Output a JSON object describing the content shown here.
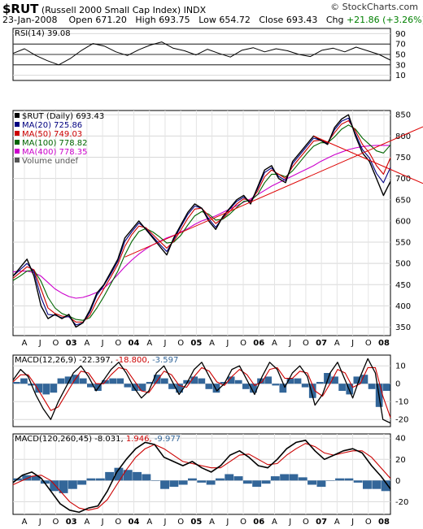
{
  "header": {
    "symbol": "$RUT",
    "name": "(Russell 2000 Small Cap Index)",
    "exchange": "INDX",
    "date": "23-Jan-2008",
    "open_label": "Open",
    "open": "671.20",
    "high_label": "High",
    "high": "693.75",
    "low_label": "Low",
    "low": "654.72",
    "close_label": "Close",
    "close": "693.43",
    "chg_label": "Chg",
    "chg": "+21.86 (+3.26%)",
    "chg_color": "#008000"
  },
  "brand": "© StockCharts.com",
  "chart_data": [
    {
      "type": "line",
      "panel": "rsi",
      "legend": "RSI(14) 39.08",
      "y_ticks": [
        "90",
        "70",
        "50",
        "30",
        "10"
      ],
      "ylim": [
        0,
        100
      ],
      "reference_lines": [
        70,
        50,
        30
      ],
      "series": [
        {
          "name": "RSI(14)",
          "color": "#000000",
          "values": [
            52,
            61,
            48,
            38,
            30,
            42,
            58,
            71,
            66,
            55,
            48,
            59,
            68,
            74,
            62,
            57,
            49,
            60,
            52,
            45,
            58,
            63,
            55,
            61,
            57,
            50,
            46,
            58,
            62,
            55,
            64,
            57,
            50,
            39
          ]
        }
      ]
    },
    {
      "type": "line",
      "panel": "price",
      "y_ticks": [
        "850",
        "800",
        "750",
        "700",
        "650",
        "600",
        "550",
        "500",
        "450",
        "400",
        "350"
      ],
      "ylim": [
        330,
        860
      ],
      "x_ticks": [
        "A",
        "J",
        "O",
        "03",
        "A",
        "J",
        "O",
        "04",
        "A",
        "J",
        "O",
        "05",
        "A",
        "J",
        "O",
        "06",
        "A",
        "J",
        "O",
        "07",
        "A",
        "J",
        "O",
        "08"
      ],
      "legend": [
        {
          "label": "$RUT (Daily) 693.43",
          "color": "#000000"
        },
        {
          "label": "MA(20) 725.86",
          "color": "#000080"
        },
        {
          "label": "MA(50) 749.03",
          "color": "#cc0000"
        },
        {
          "label": "MA(100) 778.82",
          "color": "#006600"
        },
        {
          "label": "MA(400) 778.35",
          "color": "#cc00cc"
        },
        {
          "label": "Volume undef",
          "color": "#555555"
        }
      ],
      "series": [
        {
          "name": "$RUT (Daily)",
          "color": "#000000",
          "values": [
            470,
            490,
            510,
            470,
            400,
            370,
            380,
            370,
            380,
            350,
            360,
            390,
            430,
            450,
            480,
            510,
            560,
            580,
            600,
            580,
            560,
            540,
            520,
            560,
            590,
            620,
            640,
            630,
            600,
            580,
            610,
            630,
            650,
            660,
            640,
            680,
            720,
            730,
            700,
            690,
            740,
            760,
            780,
            800,
            790,
            780,
            820,
            840,
            850,
            800,
            760,
            740,
            700,
            660,
            693
          ]
        },
        {
          "name": "MA(20)",
          "color": "#000080",
          "values": [
            470,
            485,
            500,
            480,
            420,
            380,
            378,
            372,
            375,
            355,
            360,
            385,
            425,
            448,
            475,
            505,
            552,
            575,
            595,
            582,
            563,
            545,
            528,
            556,
            586,
            615,
            635,
            630,
            605,
            585,
            608,
            628,
            646,
            656,
            645,
            676,
            714,
            725,
            705,
            695,
            735,
            755,
            775,
            795,
            790,
            782,
            815,
            835,
            842,
            805,
            768,
            748,
            712,
            690,
            726
          ]
        },
        {
          "name": "MA(50)",
          "color": "#cc0000",
          "values": [
            465,
            478,
            492,
            485,
            440,
            395,
            382,
            376,
            374,
            362,
            362,
            378,
            412,
            440,
            468,
            498,
            540,
            568,
            588,
            584,
            568,
            552,
            536,
            552,
            578,
            606,
            628,
            630,
            612,
            594,
            606,
            622,
            640,
            652,
            648,
            670,
            704,
            720,
            710,
            700,
            728,
            748,
            768,
            788,
            790,
            785,
            808,
            828,
            836,
            812,
            780,
            760,
            730,
            710,
            749
          ]
        },
        {
          "name": "MA(100)",
          "color": "#006600",
          "values": [
            460,
            470,
            482,
            484,
            458,
            420,
            395,
            382,
            376,
            368,
            366,
            372,
            395,
            422,
            452,
            482,
            520,
            552,
            575,
            582,
            574,
            562,
            548,
            550,
            566,
            590,
            612,
            622,
            616,
            602,
            604,
            616,
            632,
            646,
            648,
            662,
            690,
            710,
            710,
            704,
            718,
            738,
            758,
            776,
            784,
            784,
            798,
            816,
            826,
            816,
            795,
            780,
            765,
            760,
            779
          ]
        },
        {
          "name": "MA(400)",
          "color": "#cc00cc",
          "values": [
            480,
            482,
            482,
            478,
            470,
            455,
            440,
            430,
            422,
            418,
            420,
            425,
            432,
            442,
            456,
            474,
            492,
            508,
            522,
            534,
            544,
            552,
            560,
            566,
            574,
            582,
            592,
            600,
            606,
            612,
            620,
            628,
            636,
            644,
            652,
            662,
            672,
            682,
            690,
            698,
            706,
            714,
            722,
            730,
            740,
            748,
            756,
            762,
            768,
            772,
            775,
            777,
            778,
            778,
            778
          ]
        }
      ],
      "trend_lines": [
        {
          "color": "#dd0000",
          "from": [
            16,
            515
          ],
          "to": [
            57,
            810
          ]
        },
        {
          "color": "#dd0000",
          "from": [
            43,
            800
          ],
          "to": [
            57,
            700
          ]
        }
      ]
    },
    {
      "type": "line",
      "panel": "macd_short",
      "legend_label": "MACD(12,26,9)",
      "legend_values": [
        "-22.397",
        "-18.800",
        "-3.597"
      ],
      "legend_colors": [
        "#000000",
        "#cc0000",
        "#336699"
      ],
      "y_ticks": [
        "10",
        "0",
        "-10",
        "-20"
      ],
      "ylim": [
        -24,
        16
      ],
      "series": [
        {
          "name": "MACD",
          "color": "#000000",
          "values": [
            2,
            8,
            4,
            -6,
            -14,
            -20,
            -10,
            -2,
            6,
            10,
            4,
            -4,
            2,
            8,
            12,
            6,
            -2,
            -8,
            -4,
            6,
            10,
            2,
            -6,
            0,
            8,
            12,
            4,
            -4,
            0,
            8,
            10,
            2,
            -6,
            4,
            12,
            8,
            -2,
            6,
            10,
            4,
            -12,
            -6,
            6,
            12,
            2,
            -8,
            4,
            14,
            6,
            -20,
            -22
          ]
        },
        {
          "name": "Signal",
          "color": "#cc0000",
          "values": [
            1,
            5,
            5,
            -1,
            -8,
            -15,
            -13,
            -6,
            1,
            7,
            6,
            0,
            0,
            5,
            9,
            8,
            2,
            -4,
            -5,
            1,
            7,
            5,
            -1,
            -2,
            4,
            9,
            7,
            1,
            -1,
            4,
            8,
            5,
            -1,
            1,
            8,
            9,
            3,
            3,
            7,
            6,
            -4,
            -7,
            0,
            8,
            6,
            -2,
            0,
            9,
            9,
            -7,
            -19
          ]
        }
      ],
      "histogram": {
        "name": "Histogram",
        "color": "#336699",
        "values": [
          1,
          3,
          -1,
          -5,
          -6,
          -5,
          3,
          4,
          5,
          3,
          -2,
          -4,
          2,
          3,
          3,
          -2,
          -4,
          -4,
          1,
          5,
          3,
          -3,
          -5,
          2,
          4,
          3,
          -3,
          -5,
          1,
          4,
          2,
          -3,
          -5,
          3,
          4,
          -1,
          -5,
          3,
          3,
          -2,
          -8,
          1,
          6,
          4,
          -4,
          -6,
          4,
          5,
          -3,
          -13,
          -4
        ]
      }
    },
    {
      "type": "line",
      "panel": "macd_long",
      "legend_label": "MACD(120,260,45)",
      "legend_values": [
        "-8.031",
        "1.946",
        "-9.977"
      ],
      "legend_colors": [
        "#000000",
        "#cc0000",
        "#336699"
      ],
      "y_ticks": [
        "40",
        "20",
        "0",
        "-20"
      ],
      "ylim": [
        -32,
        44
      ],
      "x_ticks": [
        "A",
        "J",
        "O",
        "03",
        "A",
        "J",
        "O",
        "04",
        "A",
        "J",
        "O",
        "05",
        "A",
        "J",
        "O",
        "06",
        "A",
        "J",
        "O",
        "07",
        "A",
        "J",
        "O",
        "08"
      ],
      "series": [
        {
          "name": "MACD",
          "color": "#000000",
          "values": [
            -2,
            5,
            8,
            2,
            -10,
            -22,
            -28,
            -30,
            -26,
            -24,
            -10,
            8,
            20,
            30,
            36,
            34,
            22,
            18,
            14,
            18,
            12,
            8,
            14,
            24,
            28,
            22,
            14,
            12,
            20,
            30,
            36,
            38,
            28,
            20,
            24,
            28,
            30,
            26,
            14,
            4,
            -8
          ]
        },
        {
          "name": "Signal",
          "color": "#cc0000",
          "values": [
            -4,
            0,
            4,
            5,
            0,
            -10,
            -20,
            -26,
            -28,
            -26,
            -18,
            -4,
            10,
            22,
            30,
            34,
            30,
            24,
            18,
            16,
            14,
            12,
            12,
            18,
            24,
            25,
            20,
            15,
            16,
            24,
            30,
            35,
            32,
            26,
            24,
            26,
            28,
            28,
            22,
            12,
            2
          ]
        },
        {
          "name": "Histogram",
          "color": "#336699",
          "values": [
            2,
            5,
            4,
            -3,
            -10,
            -12,
            -8,
            -4,
            2,
            2,
            8,
            12,
            10,
            8,
            6,
            0,
            -8,
            -6,
            -4,
            2,
            -2,
            -4,
            2,
            6,
            4,
            -3,
            -6,
            -3,
            4,
            6,
            6,
            3,
            -4,
            -6,
            0,
            2,
            2,
            -2,
            -8,
            -8,
            -10
          ]
        }
      ]
    }
  ]
}
